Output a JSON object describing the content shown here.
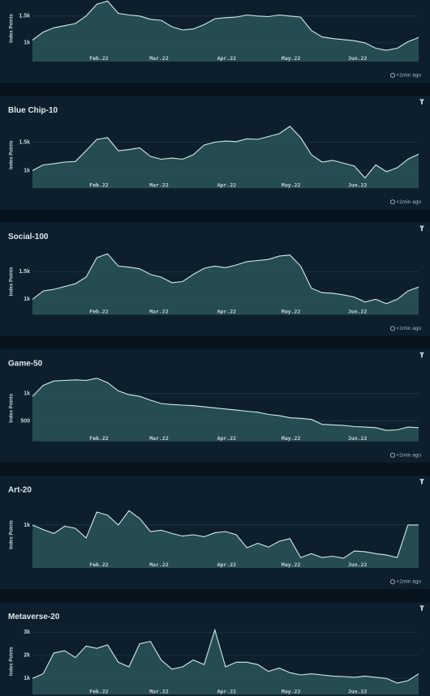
{
  "chart_data": [
    {
      "type": "area",
      "y_label": "Index Points",
      "status": "<1min ago",
      "color": "#d3ebe8",
      "fill": "#2a5558",
      "values": [
        1050,
        1200,
        1280,
        1320,
        1360,
        1500,
        1720,
        1780,
        1550,
        1520,
        1500,
        1440,
        1420,
        1300,
        1240,
        1260,
        1340,
        1450,
        1470,
        1480,
        1520,
        1500,
        1490,
        1520,
        1500,
        1480,
        1230,
        1110,
        1080,
        1060,
        1040,
        1000,
        900,
        860,
        900,
        1020,
        1100
      ],
      "xlim": [
        0,
        36
      ],
      "xticks": [
        {
          "value": 6.2,
          "label": "Feb.22"
        },
        {
          "value": 11.8,
          "label": "Mar.22"
        },
        {
          "value": 18.1,
          "label": "Apr.22"
        },
        {
          "value": 24.1,
          "label": "May.22"
        },
        {
          "value": 30.3,
          "label": "Jun.22"
        }
      ],
      "ylim": [
        650,
        1890
      ],
      "yticks": [
        {
          "value": 1000,
          "label": "1k"
        },
        {
          "value": 1500,
          "label": "1.5k"
        }
      ],
      "grid": true
    },
    {
      "type": "area",
      "title": "Blue Chip-10",
      "y_label": "Index Points",
      "status": "<1min ago",
      "color": "#d3ebe8",
      "fill": "#2a5558",
      "values": [
        1000,
        1100,
        1120,
        1150,
        1160,
        1350,
        1550,
        1580,
        1350,
        1370,
        1400,
        1250,
        1200,
        1220,
        1200,
        1280,
        1450,
        1500,
        1520,
        1510,
        1560,
        1550,
        1600,
        1650,
        1780,
        1580,
        1280,
        1150,
        1180,
        1130,
        1080,
        870,
        1100,
        980,
        1050,
        1200,
        1290
      ],
      "xlim": [
        0,
        36
      ],
      "xticks": [
        {
          "value": 6.2,
          "label": "Feb.22"
        },
        {
          "value": 11.8,
          "label": "Mar.22"
        },
        {
          "value": 18.1,
          "label": "Apr.22"
        },
        {
          "value": 24.1,
          "label": "May.22"
        },
        {
          "value": 30.3,
          "label": "Jun.22"
        }
      ],
      "ylim": [
        690,
        1860
      ],
      "yticks": [
        {
          "value": 1000,
          "label": "1k"
        },
        {
          "value": 1500,
          "label": "1.5k"
        }
      ],
      "grid": true
    },
    {
      "type": "area",
      "title": "Social-100",
      "y_label": "Index Points",
      "status": "<1min ago",
      "color": "#d3ebe8",
      "fill": "#2a5558",
      "values": [
        1000,
        1150,
        1180,
        1230,
        1280,
        1400,
        1750,
        1820,
        1600,
        1580,
        1550,
        1450,
        1400,
        1300,
        1320,
        1450,
        1560,
        1600,
        1570,
        1620,
        1680,
        1700,
        1720,
        1780,
        1800,
        1600,
        1200,
        1120,
        1110,
        1080,
        1040,
        950,
        1000,
        920,
        1000,
        1150,
        1220
      ],
      "xlim": [
        0,
        36
      ],
      "xticks": [
        {
          "value": 6.2,
          "label": "Feb.22"
        },
        {
          "value": 11.8,
          "label": "Mar.22"
        },
        {
          "value": 18.1,
          "label": "Apr.22"
        },
        {
          "value": 24.1,
          "label": "May.22"
        },
        {
          "value": 30.3,
          "label": "Jun.22"
        }
      ],
      "ylim": [
        720,
        1920
      ],
      "yticks": [
        {
          "value": 1000,
          "label": "1k"
        },
        {
          "value": 1500,
          "label": "1.5k"
        }
      ],
      "grid": true
    },
    {
      "type": "area",
      "title": "Game-50",
      "y_label": "Index Points",
      "status": "<1min ago",
      "color": "#d3ebe8",
      "fill": "#2a5558",
      "values": [
        950,
        1150,
        1230,
        1240,
        1250,
        1240,
        1280,
        1200,
        1050,
        980,
        950,
        880,
        820,
        800,
        790,
        780,
        760,
        740,
        720,
        700,
        680,
        660,
        620,
        600,
        560,
        550,
        530,
        440,
        430,
        420,
        400,
        390,
        380,
        330,
        340,
        390,
        380
      ],
      "xlim": [
        0,
        36
      ],
      "xticks": [
        {
          "value": 6.2,
          "label": "Feb.22"
        },
        {
          "value": 11.8,
          "label": "Mar.22"
        },
        {
          "value": 18.1,
          "label": "Apr.22"
        },
        {
          "value": 24.1,
          "label": "May.22"
        },
        {
          "value": 30.3,
          "label": "Jun.22"
        }
      ],
      "ylim": [
        130,
        1340
      ],
      "yticks": [
        500,
        {
          "value": 1000,
          "label": "1k"
        }
      ],
      "grid": true
    },
    {
      "type": "area",
      "title": "Art-20",
      "y_label": "Index Points",
      "status": "<1min ago",
      "color": "#d3ebe8",
      "fill": "#2a5558",
      "values": [
        1000,
        930,
        870,
        980,
        950,
        800,
        1200,
        1150,
        1000,
        1220,
        1100,
        900,
        920,
        870,
        830,
        850,
        820,
        880,
        900,
        850,
        650,
        720,
        660,
        750,
        790,
        500,
        560,
        500,
        520,
        490,
        600,
        590,
        560,
        540,
        500,
        1000,
        1000
      ],
      "xlim": [
        0,
        36
      ],
      "xticks": [
        {
          "value": 6.2,
          "label": "Feb.22"
        },
        {
          "value": 11.8,
          "label": "Mar.22"
        },
        {
          "value": 18.1,
          "label": "Apr.22"
        },
        {
          "value": 24.1,
          "label": "May.22"
        },
        {
          "value": 30.3,
          "label": "Jun.22"
        }
      ],
      "ylim": [
        340,
        1360
      ],
      "yticks": [
        {
          "value": 1000,
          "label": "1k"
        }
      ],
      "grid": true
    },
    {
      "type": "area",
      "title": "Metaverse-20",
      "y_label": "Index Points",
      "status": "<1min ago",
      "color": "#d3ebe8",
      "fill": "#2a5558",
      "values": [
        1000,
        1200,
        2100,
        2200,
        1900,
        2400,
        2300,
        2450,
        1700,
        1500,
        2500,
        2600,
        1800,
        1400,
        1500,
        1800,
        1600,
        3100,
        1500,
        1700,
        1700,
        1600,
        1300,
        1450,
        1250,
        1150,
        1200,
        1150,
        1100,
        1080,
        1050,
        1100,
        1050,
        1000,
        800,
        900,
        1200
      ],
      "xlim": [
        0,
        36
      ],
      "xticks": [
        {
          "value": 6.2,
          "label": "Feb.22"
        },
        {
          "value": 11.8,
          "label": "Mar.22"
        },
        {
          "value": 18.1,
          "label": "Apr.22"
        },
        {
          "value": 24.1,
          "label": "May.22"
        },
        {
          "value": 30.3,
          "label": "Jun.22"
        }
      ],
      "ylim": [
        300,
        3175
      ],
      "yticks": [
        {
          "value": 1000,
          "label": "1k"
        },
        {
          "value": 2000,
          "label": "2k"
        },
        {
          "value": 3000,
          "label": "3k"
        }
      ],
      "grid": true
    }
  ]
}
